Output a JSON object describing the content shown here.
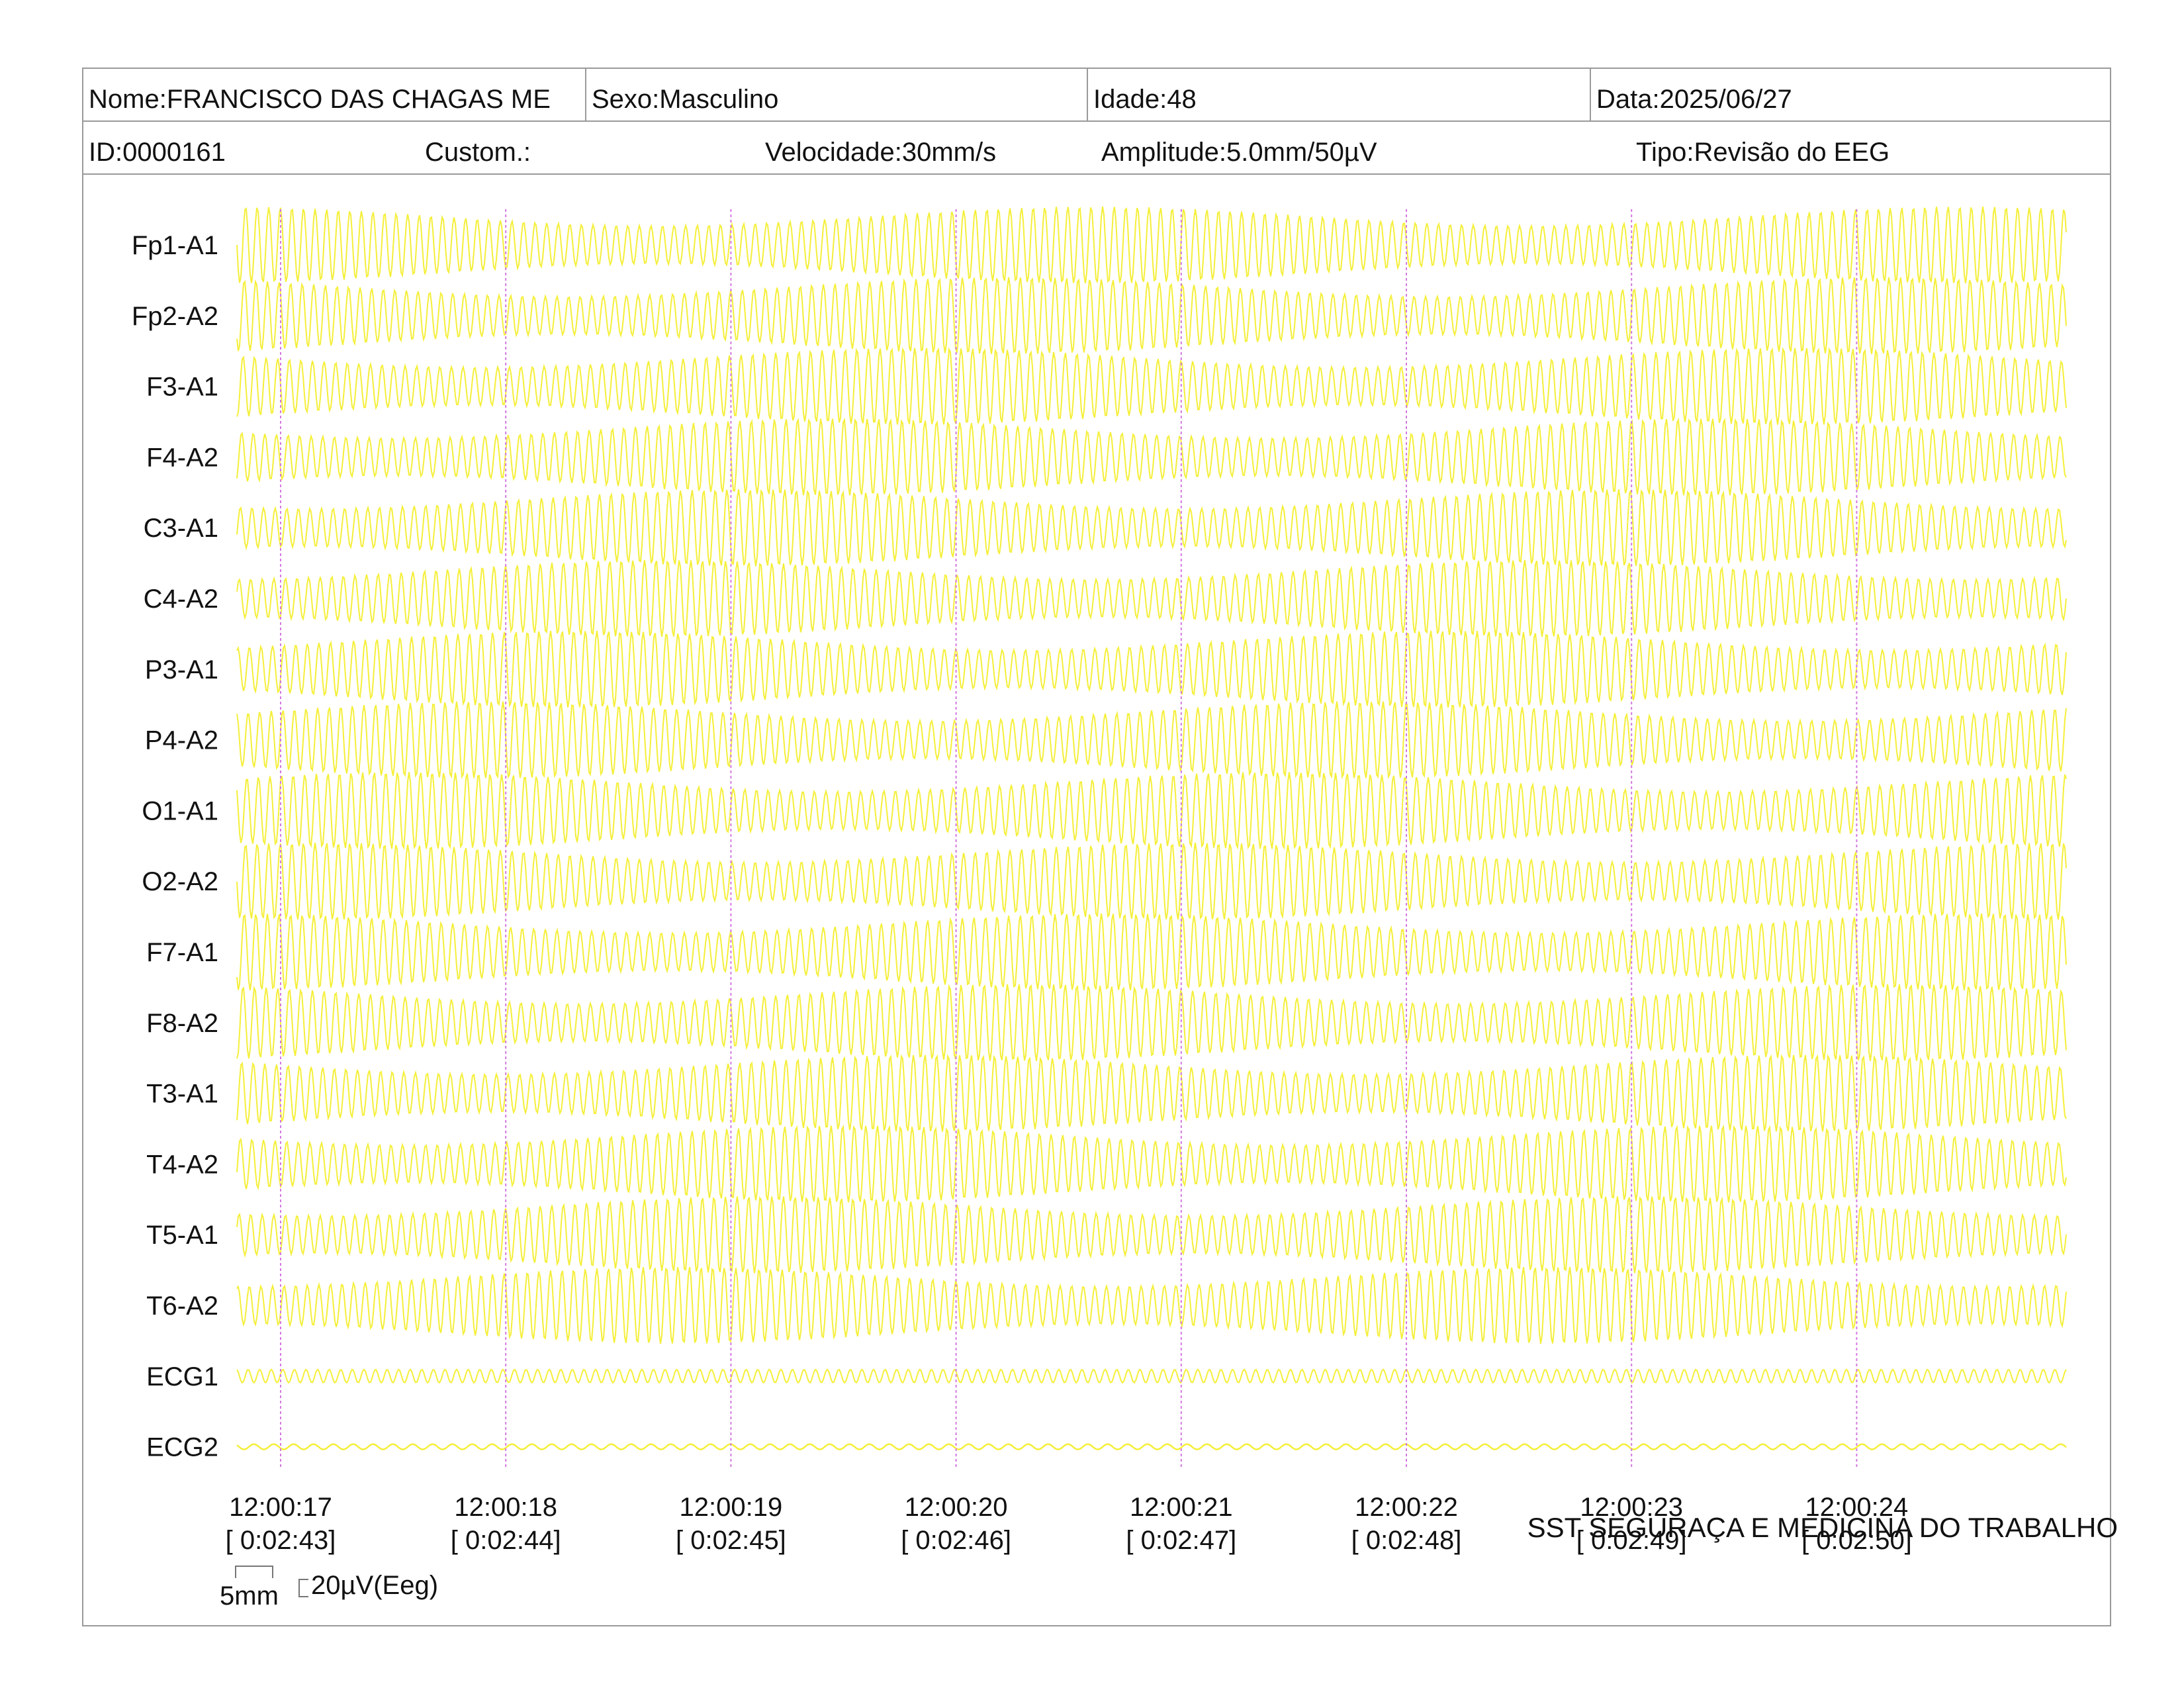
{
  "header": {
    "nome": "Nome:FRANCISCO DAS CHAGAS ME",
    "sexo": "Sexo:Masculino",
    "idade": "Idade:48",
    "data": "Data:2025/06/27",
    "id": "ID:0000161",
    "custom": "Custom.:",
    "velocidade": "Velocidade:30mm/s",
    "amplitude": "Amplitude:5.0mm/50µV",
    "tipo": "Tipo:Revisão do EEG"
  },
  "channels": [
    "Fp1-A1",
    "Fp2-A2",
    "F3-A1",
    "F4-A2",
    "C3-A1",
    "C4-A2",
    "P3-A1",
    "P4-A2",
    "O1-A1",
    "O2-A2",
    "F7-A1",
    "F8-A2",
    "T3-A1",
    "T4-A2",
    "T5-A1",
    "T6-A2",
    "ECG1",
    "ECG2"
  ],
  "time_marks": [
    {
      "clock": "12:00:17",
      "elapsed": "[ 0:02:43]"
    },
    {
      "clock": "12:00:18",
      "elapsed": "[ 0:02:44]"
    },
    {
      "clock": "12:00:19",
      "elapsed": "[ 0:02:45]"
    },
    {
      "clock": "12:00:20",
      "elapsed": "[ 0:02:46]"
    },
    {
      "clock": "12:00:21",
      "elapsed": "[ 0:02:47]"
    },
    {
      "clock": "12:00:22",
      "elapsed": "[ 0:02:48]"
    },
    {
      "clock": "12:00:23",
      "elapsed": "[ 0:02:49]"
    },
    {
      "clock": "12:00:24",
      "elapsed": "[ 0:02:50]"
    }
  ],
  "scale": {
    "time": "5mm",
    "amplitude": "20µV(Eeg)"
  },
  "footer": {
    "company": "SST SEGURAÇA E MEDICINA DO TRABALHO"
  },
  "colors": {
    "trace": "#f5ef3a",
    "marker": "#d478e0",
    "border": "#9a9a9a"
  }
}
